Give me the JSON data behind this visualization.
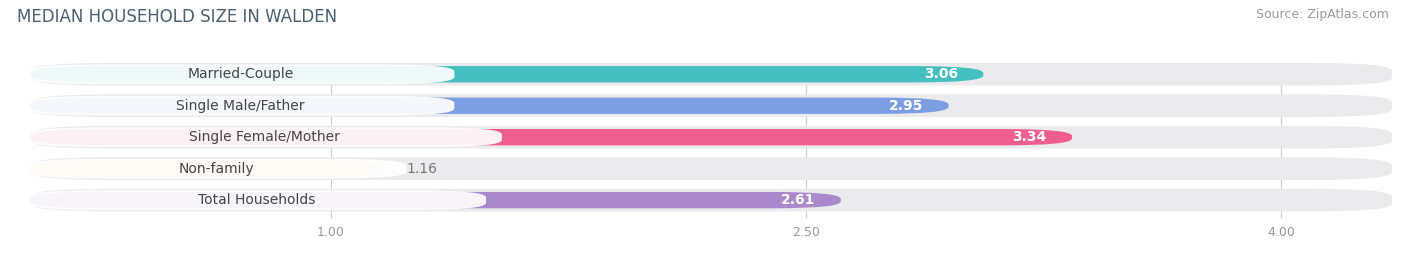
{
  "title": "MEDIAN HOUSEHOLD SIZE IN WALDEN",
  "source": "Source: ZipAtlas.com",
  "categories": [
    "Married-Couple",
    "Single Male/Father",
    "Single Female/Mother",
    "Non-family",
    "Total Households"
  ],
  "values": [
    3.06,
    2.95,
    3.34,
    1.16,
    2.61
  ],
  "bar_colors": [
    "#45BFBF",
    "#7B9FE0",
    "#EE5E8F",
    "#F5C98A",
    "#AA88CC"
  ],
  "xlim_left": 0.0,
  "xlim_right": 4.35,
  "xstart": 0.05,
  "xticks": [
    1.0,
    2.5,
    4.0
  ],
  "xtick_labels": [
    "1.00",
    "2.50",
    "4.00"
  ],
  "title_fontsize": 12,
  "source_fontsize": 9,
  "label_fontsize": 10,
  "value_fontsize": 10,
  "background_color": "#FFFFFF",
  "bar_height": 0.52,
  "bar_bg_color": "#EBEBED"
}
